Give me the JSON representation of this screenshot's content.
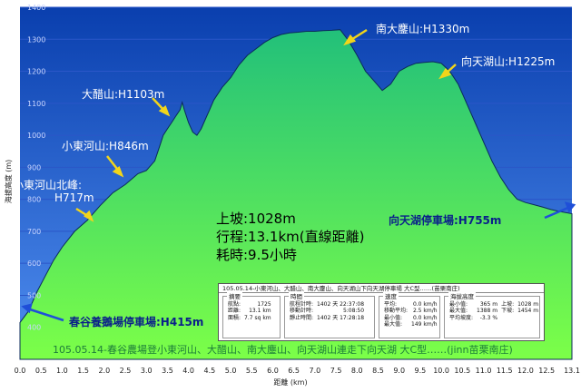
{
  "chart_data": {
    "type": "area",
    "xlabel": "距離 (km)",
    "ylabel": "海拔高度 (m)",
    "xlim": [
      0,
      13.1
    ],
    "ylim": [
      300,
      1400
    ],
    "x_ticks": [
      "0.0",
      "0.5",
      "1.0",
      "1.5",
      "2.0",
      "2.5",
      "3.0",
      "3.5",
      "4.0",
      "4.5",
      "5.0",
      "5.5",
      "6.0",
      "6.5",
      "7.0",
      "7.5",
      "8.0",
      "8.5",
      "9.0",
      "9.5",
      "10.0",
      "10.5",
      "11.0",
      "11.5",
      "12.0",
      "12.5",
      "13.1"
    ],
    "y_ticks": [
      "400",
      "500",
      "600",
      "700",
      "800",
      "900",
      "1000",
      "1100",
      "1200",
      "1300",
      "1400"
    ],
    "x": [
      0,
      0.2,
      0.4,
      0.6,
      0.8,
      1.0,
      1.3,
      1.6,
      1.9,
      2.2,
      2.5,
      2.8,
      3.0,
      3.2,
      3.3,
      3.4,
      3.5,
      3.6,
      3.7,
      3.8,
      3.85,
      3.9,
      4.0,
      4.1,
      4.2,
      4.3,
      4.4,
      4.5,
      4.6,
      4.8,
      5.0,
      5.2,
      5.4,
      5.6,
      5.8,
      6.0,
      6.2,
      6.4,
      6.6,
      6.8,
      7.0,
      7.2,
      7.4,
      7.6,
      7.8,
      8.0,
      8.2,
      8.4,
      8.6,
      8.8,
      9.0,
      9.2,
      9.4,
      9.6,
      9.8,
      10.0,
      10.2,
      10.4,
      10.6,
      10.8,
      11.0,
      11.2,
      11.4,
      11.6,
      11.8,
      12.0,
      12.2,
      12.4,
      12.6,
      12.8,
      13.1
    ],
    "y": [
      415,
      450,
      510,
      560,
      610,
      650,
      700,
      735,
      780,
      820,
      846,
      880,
      890,
      920,
      960,
      1000,
      1020,
      1040,
      1060,
      1080,
      1103,
      1080,
      1040,
      1010,
      1000,
      1020,
      1050,
      1080,
      1110,
      1150,
      1180,
      1220,
      1250,
      1270,
      1290,
      1305,
      1315,
      1320,
      1322,
      1325,
      1325,
      1327,
      1328,
      1330,
      1295,
      1250,
      1200,
      1170,
      1140,
      1160,
      1200,
      1215,
      1225,
      1228,
      1230,
      1225,
      1200,
      1160,
      1100,
      1040,
      980,
      920,
      870,
      830,
      800,
      790,
      783,
      776,
      768,
      762,
      755
    ],
    "peaks_text": {
      "p1": "小東河山北峰:",
      "p1b": "H717m",
      "p2": "小東河山:H846m",
      "p3": "大醋山:H1103m",
      "p4": "南大鏖山:H1330m",
      "p5": "向天湖山:H1225m",
      "start": "春谷養鵝場停車場:H415m",
      "end": "向天湖停車場:H755m"
    },
    "summary": {
      "line1": "上坡:1028m",
      "line2": "行程:13.1km(直線距離)",
      "line3": "耗時:9.5小時"
    },
    "caption": "105.05.14-春谷農場登小東河山、大醋山、南大鏖山、向天湖山連走下向天湖 大C型……(jinn苗栗南庄)",
    "colors": {
      "fill_top": "#22c07a",
      "fill_bottom": "#7cff48",
      "sky_top": "#0a3fae",
      "sky_bottom": "#4f8ef0",
      "grid": "#2b56c8",
      "arrow": "#f2d51a",
      "arrow_blue": "#1f4fd8"
    }
  },
  "info_panel": {
    "title": "105.05.14-小東河山、大醋山、南大鏖山、向天湖山下向天湖停車場 大C型……(苗栗南庄)",
    "groups": [
      {
        "header": "摘要",
        "rows": [
          [
            "航點:",
            "1725"
          ],
          [
            "距離:",
            "13.1 km"
          ],
          [
            "面積:",
            "7.7 sq km"
          ]
        ]
      },
      {
        "header": "時間",
        "rows": [
          [
            "航程計時:",
            "1402 天 22:37:08"
          ],
          [
            "移動計時:",
            "5:08:50"
          ],
          [
            "靜止時間:",
            "1402 天 17:28:18"
          ]
        ]
      },
      {
        "header": "速度",
        "rows": [
          [
            "平均:",
            "0.0 km/h"
          ],
          [
            "移動平均:",
            "2.5 km/h"
          ],
          [
            "最小值:",
            "0.0 km/h"
          ],
          [
            "最大值:",
            "149 km/h"
          ]
        ]
      },
      {
        "header": "海拔高度",
        "rows": [
          [
            "最小值:",
            "365 m",
            "上坡:",
            "1028 m"
          ],
          [
            "最大值:",
            "1388 m",
            "下坡:",
            "1454 m"
          ],
          [
            "平均坡度:",
            "-3.3 %",
            "",
            ""
          ]
        ]
      }
    ]
  }
}
